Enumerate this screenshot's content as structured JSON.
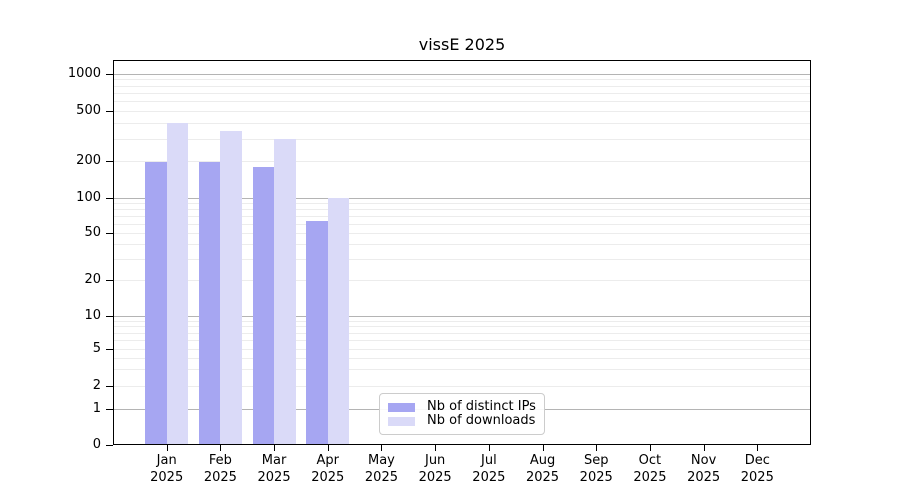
{
  "chart_data": {
    "type": "bar",
    "title": "vissE 2025",
    "categories": [
      "Jan",
      "Feb",
      "Mar",
      "Apr",
      "May",
      "Jun",
      "Jul",
      "Aug",
      "Sep",
      "Oct",
      "Nov",
      "Dec"
    ],
    "category_year": "2025",
    "series": [
      {
        "name": "Nb of distinct IPs",
        "color": "#a6a6f2",
        "values": [
          195,
          198,
          180,
          63,
          null,
          null,
          null,
          null,
          null,
          null,
          null,
          null
        ]
      },
      {
        "name": "Nb of downloads",
        "color": "#dadaf8",
        "values": [
          395,
          345,
          300,
          100,
          null,
          null,
          null,
          null,
          null,
          null,
          null,
          null
        ]
      }
    ],
    "y_ticks": [
      0,
      1,
      2,
      5,
      10,
      20,
      50,
      100,
      200,
      500,
      1000
    ],
    "y_scale": "symlog",
    "ylim": [
      0,
      1300
    ],
    "xlabel": "",
    "ylabel": "",
    "grid": true,
    "grid_major_color": "#b4b4b4",
    "grid_minor_color": "#ececec",
    "legend_position": "lower center-left"
  }
}
